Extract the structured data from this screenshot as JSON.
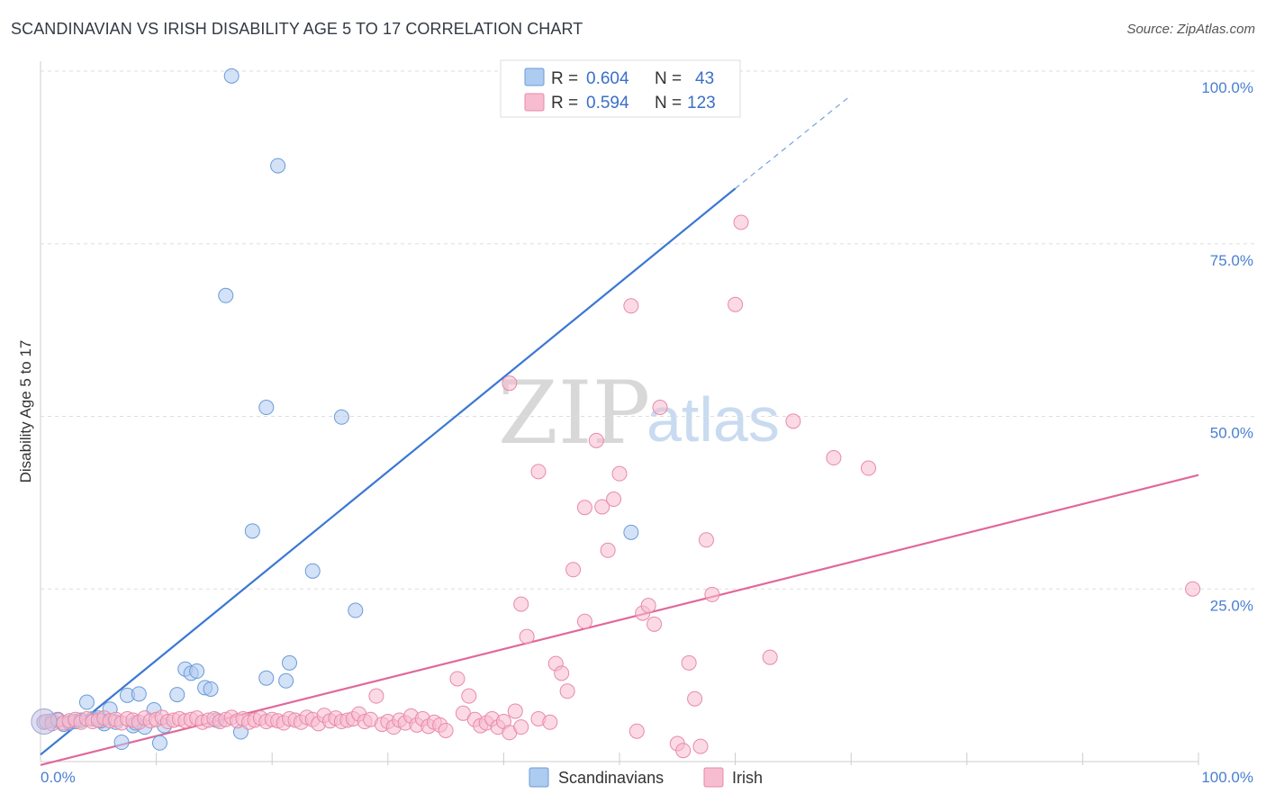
{
  "header": {
    "title": "SCANDINAVIAN VS IRISH DISABILITY AGE 5 TO 17 CORRELATION CHART",
    "source": "Source: ZipAtlas.com"
  },
  "watermark": {
    "zip": "ZIP",
    "atlas": "atlas"
  },
  "legend": {
    "r_label": "R =",
    "n_label": "N =",
    "series": [
      {
        "name": "Scandinavians",
        "r": "0.604",
        "n": "43",
        "fill": "#aecbf0",
        "stroke": "#6a9bd8"
      },
      {
        "name": "Irish",
        "r": "0.594",
        "n": "123",
        "fill": "#f7bcd0",
        "stroke": "#e88aa8"
      }
    ]
  },
  "chart_data": {
    "type": "scatter",
    "title": "SCANDINAVIAN VS IRISH DISABILITY AGE 5 TO 17 CORRELATION CHART",
    "xlabel": "",
    "ylabel": "Disability Age 5 to 17",
    "xlim": [
      0,
      100
    ],
    "ylim": [
      0,
      100
    ],
    "x_tick_labels": [
      "0.0%",
      "100.0%"
    ],
    "y_ticks": [
      25,
      50,
      75,
      100
    ],
    "y_tick_labels": [
      "25.0%",
      "50.0%",
      "75.0%",
      "100.0%"
    ],
    "grid": true,
    "series": [
      {
        "name": "Scandinavians",
        "color": "#3a77d4",
        "trend": {
          "x0": 0,
          "y0": 1.0,
          "x1": 60,
          "y1": 83.0,
          "dashed_to_x": 70,
          "dashed_to_y": 96.5
        },
        "points": [
          [
            0.3,
            5.7
          ],
          [
            1,
            5.9
          ],
          [
            1.5,
            6.1
          ],
          [
            2,
            5.4
          ],
          [
            2.5,
            5.6
          ],
          [
            3,
            5.8
          ],
          [
            3.5,
            6.0
          ],
          [
            4,
            8.6
          ],
          [
            4.5,
            6.2
          ],
          [
            5,
            6.3
          ],
          [
            5.5,
            5.5
          ],
          [
            6,
            7.6
          ],
          [
            6.5,
            5.7
          ],
          [
            7,
            2.8
          ],
          [
            7.5,
            9.6
          ],
          [
            8,
            5.2
          ],
          [
            8.5,
            9.8
          ],
          [
            9,
            5.0
          ],
          [
            9.8,
            7.5
          ],
          [
            10.3,
            2.7
          ],
          [
            10.7,
            5.2
          ],
          [
            11.8,
            9.7
          ],
          [
            12.5,
            13.4
          ],
          [
            13,
            12.8
          ],
          [
            13.5,
            13.1
          ],
          [
            14.2,
            10.7
          ],
          [
            14.7,
            10.5
          ],
          [
            15.2,
            6.0
          ],
          [
            16,
            67.5
          ],
          [
            16.5,
            99.3
          ],
          [
            17.3,
            4.3
          ],
          [
            18.3,
            33.4
          ],
          [
            19.5,
            12.1
          ],
          [
            19.5,
            51.3
          ],
          [
            20.5,
            86.3
          ],
          [
            21.2,
            11.7
          ],
          [
            21.5,
            14.3
          ],
          [
            23.5,
            27.6
          ],
          [
            26,
            49.9
          ],
          [
            27.2,
            21.9
          ],
          [
            51,
            33.2
          ],
          [
            5.2,
            5.9
          ],
          [
            8.2,
            5.6
          ]
        ]
      },
      {
        "name": "Irish",
        "color": "#e0689a",
        "trend": {
          "x0": 0,
          "y0": -0.5,
          "x1": 100,
          "y1": 41.5
        },
        "points": [
          [
            0.5,
            5.8
          ],
          [
            1,
            5.5
          ],
          [
            1.5,
            6.0
          ],
          [
            2,
            5.6
          ],
          [
            2.5,
            5.9
          ],
          [
            3,
            6.1
          ],
          [
            3.5,
            5.7
          ],
          [
            4,
            6.2
          ],
          [
            4.5,
            5.8
          ],
          [
            5,
            6.0
          ],
          [
            5.5,
            6.3
          ],
          [
            6,
            5.9
          ],
          [
            6.5,
            6.1
          ],
          [
            7,
            5.6
          ],
          [
            7.5,
            6.2
          ],
          [
            8,
            6.0
          ],
          [
            8.5,
            5.7
          ],
          [
            9,
            6.3
          ],
          [
            9.5,
            5.9
          ],
          [
            10,
            6.1
          ],
          [
            10.5,
            6.4
          ],
          [
            11,
            5.8
          ],
          [
            11.5,
            6.0
          ],
          [
            12,
            6.2
          ],
          [
            12.5,
            5.9
          ],
          [
            13,
            6.1
          ],
          [
            13.5,
            6.3
          ],
          [
            14,
            5.7
          ],
          [
            14.5,
            6.0
          ],
          [
            15,
            6.2
          ],
          [
            15.5,
            5.8
          ],
          [
            16,
            6.1
          ],
          [
            16.5,
            6.4
          ],
          [
            17,
            5.9
          ],
          [
            17.5,
            6.2
          ],
          [
            18,
            5.7
          ],
          [
            18.5,
            6.0
          ],
          [
            19,
            6.3
          ],
          [
            19.5,
            5.8
          ],
          [
            20,
            6.1
          ],
          [
            20.5,
            5.9
          ],
          [
            21,
            5.6
          ],
          [
            21.5,
            6.2
          ],
          [
            22,
            6.0
          ],
          [
            22.5,
            5.7
          ],
          [
            23,
            6.4
          ],
          [
            23.5,
            6.1
          ],
          [
            24,
            5.5
          ],
          [
            24.5,
            6.7
          ],
          [
            25,
            5.9
          ],
          [
            25.5,
            6.3
          ],
          [
            26,
            5.8
          ],
          [
            26.5,
            6.0
          ],
          [
            27,
            6.2
          ],
          [
            27.5,
            6.9
          ],
          [
            28,
            5.8
          ],
          [
            28.5,
            6.1
          ],
          [
            29,
            9.5
          ],
          [
            29.5,
            5.4
          ],
          [
            30,
            5.8
          ],
          [
            30.5,
            5.0
          ],
          [
            31,
            6.0
          ],
          [
            31.5,
            5.6
          ],
          [
            32,
            6.6
          ],
          [
            32.5,
            5.3
          ],
          [
            33,
            6.2
          ],
          [
            33.5,
            5.1
          ],
          [
            34,
            5.7
          ],
          [
            34.5,
            5.3
          ],
          [
            35,
            4.5
          ],
          [
            36,
            12.0
          ],
          [
            36.5,
            7.0
          ],
          [
            37,
            9.5
          ],
          [
            37.5,
            6.1
          ],
          [
            38,
            5.2
          ],
          [
            38.5,
            5.6
          ],
          [
            39,
            6.2
          ],
          [
            39.5,
            5.0
          ],
          [
            40,
            5.8
          ],
          [
            40.5,
            4.2
          ],
          [
            40.5,
            54.8
          ],
          [
            41,
            7.3
          ],
          [
            41.5,
            5.0
          ],
          [
            41.5,
            22.8
          ],
          [
            42,
            18.1
          ],
          [
            43,
            6.2
          ],
          [
            43,
            42.0
          ],
          [
            44,
            5.7
          ],
          [
            44.5,
            14.2
          ],
          [
            45,
            12.8
          ],
          [
            45.5,
            10.2
          ],
          [
            46,
            27.8
          ],
          [
            47,
            36.8
          ],
          [
            47,
            20.3
          ],
          [
            48,
            46.5
          ],
          [
            48.5,
            36.9
          ],
          [
            49,
            30.6
          ],
          [
            49.5,
            38.0
          ],
          [
            50,
            41.7
          ],
          [
            51,
            66.0
          ],
          [
            51.5,
            4.4
          ],
          [
            52,
            21.5
          ],
          [
            52.5,
            22.6
          ],
          [
            53,
            19.9
          ],
          [
            53.5,
            51.3
          ],
          [
            55,
            2.6
          ],
          [
            55.5,
            1.6
          ],
          [
            56,
            14.3
          ],
          [
            56.5,
            9.1
          ],
          [
            57,
            2.2
          ],
          [
            57.5,
            32.1
          ],
          [
            58,
            24.2
          ],
          [
            60,
            66.2
          ],
          [
            60.5,
            78.1
          ],
          [
            63,
            15.1
          ],
          [
            65,
            49.3
          ],
          [
            68.5,
            44.0
          ],
          [
            71.5,
            42.5
          ],
          [
            99.5,
            25.0
          ]
        ]
      }
    ]
  }
}
